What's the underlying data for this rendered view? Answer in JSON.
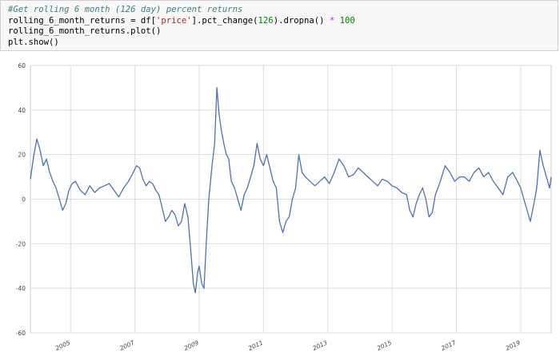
{
  "code_cell": {
    "comment": "#Get rolling 6 month (126 day) percent returns",
    "line2": {
      "a": "rolling_6_month_returns = df[",
      "str": "'price'",
      "b": "].pct_change(",
      "num1": "126",
      "c": ").dropna() ",
      "op": "*",
      "sp": " ",
      "num2": "100"
    },
    "line3": "rolling_6_month_returns.plot()",
    "line4": "plt.show()"
  },
  "chart_data": {
    "type": "line",
    "title": "",
    "xlabel": "",
    "ylabel": "",
    "xlim": [
      2003.75,
      2019.95
    ],
    "ylim": [
      -60,
      60
    ],
    "yticks": [
      -60,
      -40,
      -20,
      0,
      20,
      40,
      60
    ],
    "xticks": [
      2005,
      2007,
      2009,
      2011,
      2013,
      2015,
      2017,
      2019
    ],
    "grid": true,
    "legend": "none",
    "line_color": "#4c72b0",
    "series": [
      {
        "x": [
          2003.75,
          2003.85,
          2003.95,
          2004.05,
          2004.15,
          2004.25,
          2004.35,
          2004.45,
          2004.55,
          2004.65,
          2004.75,
          2004.85,
          2004.95,
          2005.05,
          2005.15,
          2005.3,
          2005.45,
          2005.6,
          2005.75,
          2005.9,
          2006.05,
          2006.2,
          2006.35,
          2006.5,
          2006.65,
          2006.8,
          2006.95,
          2007.05,
          2007.15,
          2007.25,
          2007.35,
          2007.45,
          2007.55,
          2007.65,
          2007.75,
          2007.85,
          2007.95,
          2008.05,
          2008.15,
          2008.25,
          2008.35,
          2008.45,
          2008.55,
          2008.65,
          2008.75,
          2008.82,
          2008.88,
          2008.95,
          2009.0,
          2009.08,
          2009.15,
          2009.22,
          2009.3,
          2009.4,
          2009.48,
          2009.55,
          2009.62,
          2009.7,
          2009.78,
          2009.85,
          2009.92,
          2010.0,
          2010.1,
          2010.2,
          2010.3,
          2010.4,
          2010.5,
          2010.6,
          2010.7,
          2010.8,
          2010.9,
          2011.0,
          2011.1,
          2011.2,
          2011.3,
          2011.4,
          2011.5,
          2011.6,
          2011.7,
          2011.8,
          2011.9,
          2012.0,
          2012.1,
          2012.2,
          2012.3,
          2012.45,
          2012.6,
          2012.75,
          2012.9,
          2013.05,
          2013.2,
          2013.35,
          2013.5,
          2013.65,
          2013.8,
          2013.95,
          2014.1,
          2014.25,
          2014.4,
          2014.55,
          2014.7,
          2014.85,
          2015.0,
          2015.15,
          2015.3,
          2015.45,
          2015.55,
          2015.65,
          2015.75,
          2015.85,
          2015.95,
          2016.05,
          2016.15,
          2016.25,
          2016.35,
          2016.5,
          2016.65,
          2016.8,
          2016.95,
          2017.1,
          2017.25,
          2017.4,
          2017.55,
          2017.7,
          2017.85,
          2018.0,
          2018.15,
          2018.3,
          2018.45,
          2018.6,
          2018.75,
          2018.9,
          2019.0,
          2019.1,
          2019.2,
          2019.3,
          2019.4,
          2019.5,
          2019.6,
          2019.7,
          2019.8,
          2019.9,
          2019.95
        ],
        "y": [
          9,
          19,
          27,
          22,
          15,
          18,
          12,
          8,
          5,
          0,
          -5,
          -2,
          4,
          7,
          8,
          4,
          2,
          6,
          3,
          5,
          6,
          7,
          4,
          1,
          5,
          8,
          12,
          15,
          14,
          9,
          6,
          8,
          7,
          4,
          2,
          -4,
          -10,
          -8,
          -5,
          -7,
          -12,
          -10,
          -2,
          -8,
          -25,
          -38,
          -42,
          -33,
          -30,
          -38,
          -40,
          -20,
          0,
          15,
          25,
          50,
          38,
          30,
          24,
          20,
          18,
          8,
          5,
          0,
          -5,
          2,
          5,
          10,
          15,
          25,
          18,
          15,
          20,
          14,
          8,
          5,
          -10,
          -15,
          -10,
          -8,
          0,
          5,
          20,
          12,
          10,
          8,
          6,
          8,
          10,
          7,
          12,
          18,
          15,
          10,
          11,
          14,
          12,
          10,
          8,
          6,
          9,
          8,
          6,
          5,
          3,
          2,
          -5,
          -8,
          -2,
          2,
          5,
          0,
          -8,
          -6,
          2,
          8,
          15,
          12,
          8,
          10,
          10,
          8,
          12,
          14,
          10,
          12,
          8,
          5,
          2,
          10,
          12,
          8,
          5,
          0,
          -5,
          -10,
          -3,
          5,
          22,
          15,
          10,
          5,
          10
        ]
      }
    ]
  }
}
